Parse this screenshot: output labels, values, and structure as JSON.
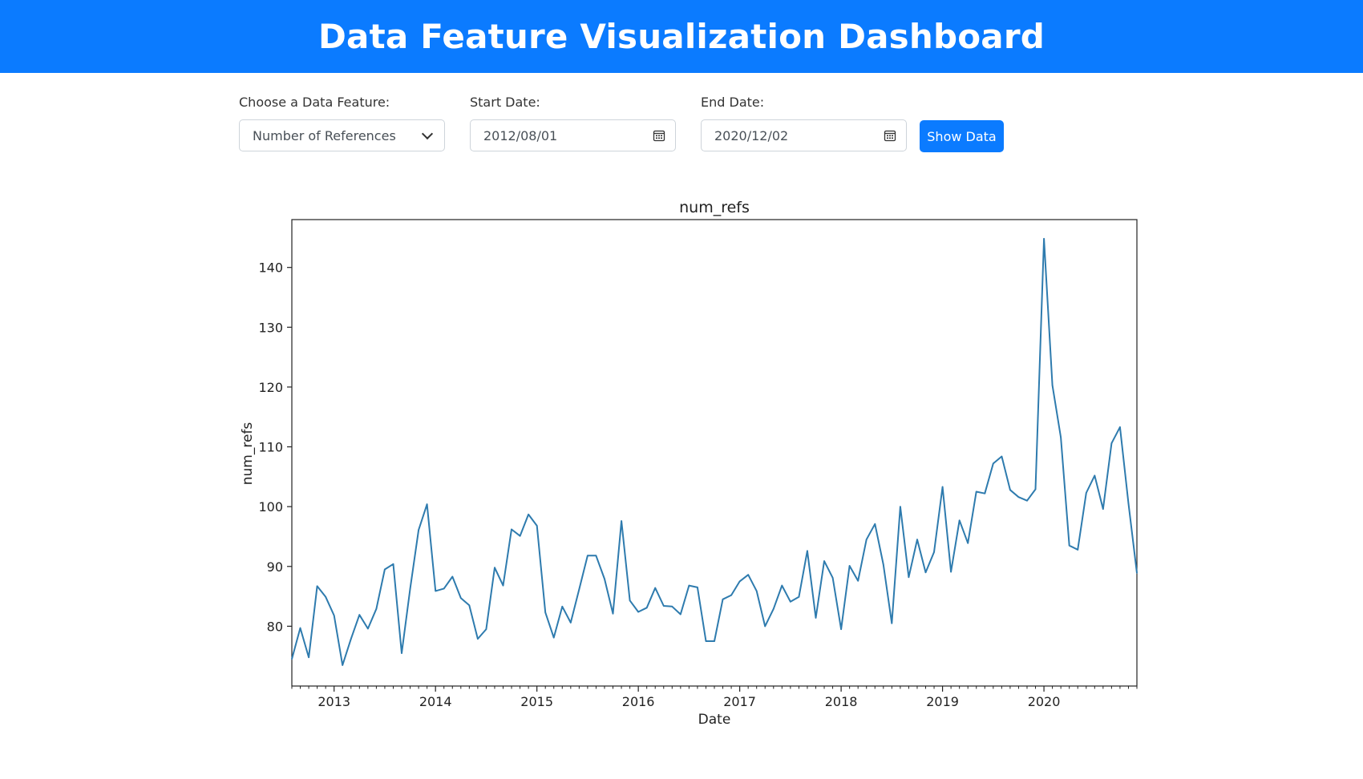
{
  "header": {
    "title": "Data Feature Visualization Dashboard"
  },
  "controls": {
    "feature": {
      "label": "Choose a Data Feature:",
      "value": "Number of References"
    },
    "start_date": {
      "label": "Start Date:",
      "value": "2012/08/01"
    },
    "end_date": {
      "label": "End Date:",
      "value": "2020/12/02"
    },
    "show_button": "Show Data"
  },
  "colors": {
    "accent": "#0b7bff",
    "line": "#2e7bae"
  },
  "icons": {
    "select": "chevron-down-icon",
    "date": "calendar-icon"
  },
  "chart_data": {
    "type": "line",
    "title": "num_refs",
    "xlabel": "Date",
    "ylabel": "num_refs",
    "x_start": "2012-08",
    "x_end": "2020-12",
    "x_ticks": [
      "2013",
      "2014",
      "2015",
      "2016",
      "2017",
      "2018",
      "2019",
      "2020"
    ],
    "y_ticks": [
      80,
      90,
      100,
      110,
      120,
      130,
      140
    ],
    "ylim": [
      70,
      148
    ],
    "grid": false,
    "series": [
      {
        "x": [
          "2012-08",
          "2012-09",
          "2012-10",
          "2012-11",
          "2012-12",
          "2013-01",
          "2013-02",
          "2013-03",
          "2013-04",
          "2013-05",
          "2013-06",
          "2013-07",
          "2013-08",
          "2013-09",
          "2013-10",
          "2013-11",
          "2013-12",
          "2014-01",
          "2014-02",
          "2014-03",
          "2014-04",
          "2014-05",
          "2014-06",
          "2014-07",
          "2014-08",
          "2014-09",
          "2014-10",
          "2014-11",
          "2014-12",
          "2015-01",
          "2015-02",
          "2015-03",
          "2015-04",
          "2015-05",
          "2015-06",
          "2015-07",
          "2015-08",
          "2015-09",
          "2015-10",
          "2015-11",
          "2015-12",
          "2016-01",
          "2016-02",
          "2016-03",
          "2016-04",
          "2016-05",
          "2016-06",
          "2016-07",
          "2016-08",
          "2016-09",
          "2016-10",
          "2016-11",
          "2016-12",
          "2017-01",
          "2017-02",
          "2017-03",
          "2017-04",
          "2017-05",
          "2017-06",
          "2017-07",
          "2017-08",
          "2017-09",
          "2017-10",
          "2017-11",
          "2017-12",
          "2018-01",
          "2018-02",
          "2018-03",
          "2018-04",
          "2018-05",
          "2018-06",
          "2018-07",
          "2018-08",
          "2018-09",
          "2018-10",
          "2018-11",
          "2018-12",
          "2019-01",
          "2019-02",
          "2019-03",
          "2019-04",
          "2019-05",
          "2019-06",
          "2019-07",
          "2019-08",
          "2019-09",
          "2019-10",
          "2019-11",
          "2019-12",
          "2020-01",
          "2020-02",
          "2020-03",
          "2020-04",
          "2020-05",
          "2020-06",
          "2020-07",
          "2020-08",
          "2020-09",
          "2020-10",
          "2020-11",
          "2020-12"
        ],
        "values": [
          74.5,
          79.7,
          74.8,
          86.7,
          84.9,
          81.8,
          73.5,
          77.9,
          81.9,
          79.6,
          82.9,
          89.5,
          90.4,
          75.5,
          86.3,
          96.1,
          100.4,
          85.9,
          86.3,
          88.3,
          84.7,
          83.5,
          77.9,
          79.5,
          89.8,
          86.8,
          96.2,
          95.1,
          98.7,
          96.8,
          82.3,
          78.1,
          83.3,
          80.6,
          86.2,
          91.8,
          91.8,
          87.9,
          82.1,
          97.6,
          84.3,
          82.4,
          83.1,
          86.4,
          83.4,
          83.3,
          82.0,
          86.8,
          86.5,
          77.5,
          77.5,
          84.5,
          85.2,
          87.5,
          88.6,
          85.9,
          80.0,
          82.9,
          86.8,
          84.1,
          84.9,
          92.6,
          81.4,
          90.9,
          88.1,
          79.5,
          90.1,
          87.6,
          94.5,
          97.1,
          90.3,
          80.5,
          100.0,
          88.2,
          94.5,
          89.0,
          92.4,
          103.3,
          89.1,
          97.7,
          93.9,
          102.5,
          102.2,
          107.2,
          108.4,
          102.8,
          101.6,
          101.0,
          102.9,
          144.8,
          120.3,
          111.6,
          93.5,
          92.8,
          102.3,
          105.2,
          99.6,
          110.6,
          113.3,
          100.5,
          88.9
        ]
      }
    ]
  }
}
